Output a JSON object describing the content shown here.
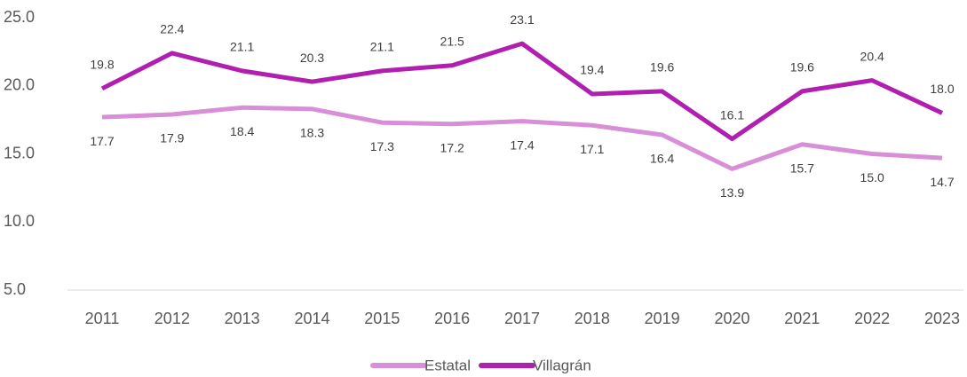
{
  "chart_data": {
    "type": "line",
    "categories": [
      "2011",
      "2012",
      "2013",
      "2014",
      "2015",
      "2016",
      "2017",
      "2018",
      "2019",
      "2020",
      "2021",
      "2022",
      "2023"
    ],
    "series": [
      {
        "name": "Estatal",
        "color": "#d98fd8",
        "values": [
          17.7,
          17.9,
          18.4,
          18.3,
          17.3,
          17.2,
          17.4,
          17.1,
          16.4,
          13.9,
          15.7,
          15.0,
          14.7
        ],
        "value_labels": [
          "17.7",
          "17.9",
          "18.4",
          "18.3",
          "17.3",
          "17.2",
          "17.4",
          "17.1",
          "16.4",
          "13.9",
          "15.7",
          "15.0",
          "14.7"
        ]
      },
      {
        "name": "Villagrán",
        "color": "#b01fb0",
        "values": [
          19.8,
          22.4,
          21.1,
          20.3,
          21.1,
          21.5,
          23.1,
          19.4,
          19.6,
          16.1,
          19.6,
          20.4,
          18.0
        ],
        "value_labels": [
          "19.8",
          "22.4",
          "21.1",
          "20.3",
          "21.1",
          "21.5",
          "23.1",
          "19.4",
          "19.6",
          "16.1",
          "19.6",
          "20.4",
          "18.0"
        ]
      }
    ],
    "ylim": [
      5,
      25
    ],
    "yticks": [
      {
        "value": 5,
        "label": "5.0"
      },
      {
        "value": 10,
        "label": "10.0"
      },
      {
        "value": 15,
        "label": "15.0"
      },
      {
        "value": 20,
        "label": "20.0"
      },
      {
        "value": 25,
        "label": "25.0"
      }
    ],
    "grid": false,
    "legend": "bottom"
  }
}
